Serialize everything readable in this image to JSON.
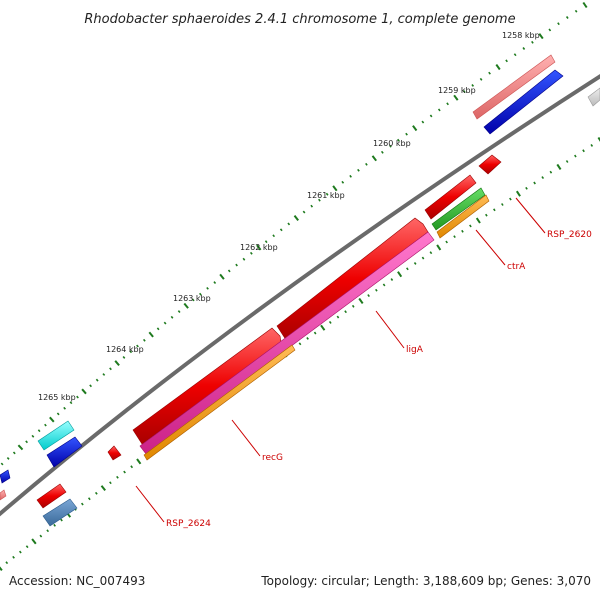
{
  "title": "Rhodobacter sphaeroides 2.4.1 chromosome 1, complete genome",
  "ticks": [
    "1258 kbp",
    "1259 kbp",
    "1260 kbp",
    "1261 kbp",
    "1262 kbp",
    "1263 kbp",
    "1264 kbp",
    "1265 kbp"
  ],
  "gene_labels": [
    "RSP_2620",
    "ctrA",
    "ligA",
    "recG",
    "RSP_2624"
  ],
  "footer": {
    "accession": "Accession: NC_007493",
    "summary": "Topology: circular; Length: 3,188,609 bp; Genes: 3,070"
  },
  "colors": {
    "backbone": "#707070",
    "tick": "#1e7a1e",
    "red": "#ee0000",
    "pink": "#ee3399",
    "orange": "#ff9900",
    "green": "#33bb33",
    "blue": "#0000dd",
    "cyan": "#00eeee",
    "steel": "#4a7fb5",
    "salmon": "#f08080",
    "grey": "#cccccc",
    "label": "#cc0000"
  }
}
